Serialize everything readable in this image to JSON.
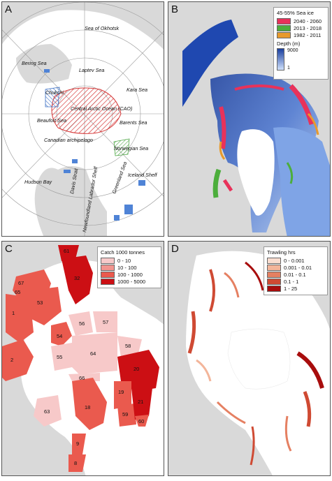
{
  "panels": {
    "a": {
      "label": "A",
      "place_names": [
        "Sea of Okhotsk",
        "Bering Sea",
        "Chukchi",
        "Laptev Sea",
        "Kara Sea",
        "Beaufort Sea",
        "Central Arctic Ocean (CAO)",
        "Barents Sea",
        "Canadian archipelago",
        "Norwegian Sea",
        "Iceland Shelf",
        "Hudson Bay",
        "Davis Strait",
        "Greenland Sea",
        "Newfoundland Labrador Shelf"
      ]
    },
    "b": {
      "label": "B",
      "legend_title": "45-55% Sea ice",
      "legend_items": [
        {
          "label": "2040 - 2060",
          "color": "#e8325a"
        },
        {
          "label": "2013 - 2018",
          "color": "#4cae3c"
        },
        {
          "label": "1982 - 2011",
          "color": "#e89a2c"
        }
      ],
      "depth_title": "Depth (m)",
      "depth_max": "9000",
      "depth_min": "1"
    },
    "c": {
      "label": "C",
      "legend_title": "Catch 1000 tonnes",
      "legend_items": [
        {
          "label": "0 - 10",
          "color": "#f7c9c9"
        },
        {
          "label": "10 - 100",
          "color": "#f2958f"
        },
        {
          "label": "100 - 1000",
          "color": "#ea5a4e"
        },
        {
          "label": "1000 - 5000",
          "color": "#cc0f14"
        }
      ],
      "area_codes": [
        "61",
        "32",
        "67",
        "65",
        "53",
        "1",
        "54",
        "56",
        "57",
        "58",
        "2",
        "55",
        "64",
        "66",
        "20",
        "19",
        "18",
        "59",
        "21",
        "60",
        "63",
        "9",
        "8"
      ]
    },
    "d": {
      "label": "D",
      "legend_title": "Trawling hrs",
      "legend_items": [
        {
          "label": "0 - 0.001",
          "color": "#f9ddd0"
        },
        {
          "label": "0.001 - 0.01",
          "color": "#f3b59a"
        },
        {
          "label": "0.01 - 0.1",
          "color": "#e58062"
        },
        {
          "label": "0.1 - 1",
          "color": "#cf4a33"
        },
        {
          "label": "1 - 25",
          "color": "#a80d0d"
        }
      ]
    }
  }
}
